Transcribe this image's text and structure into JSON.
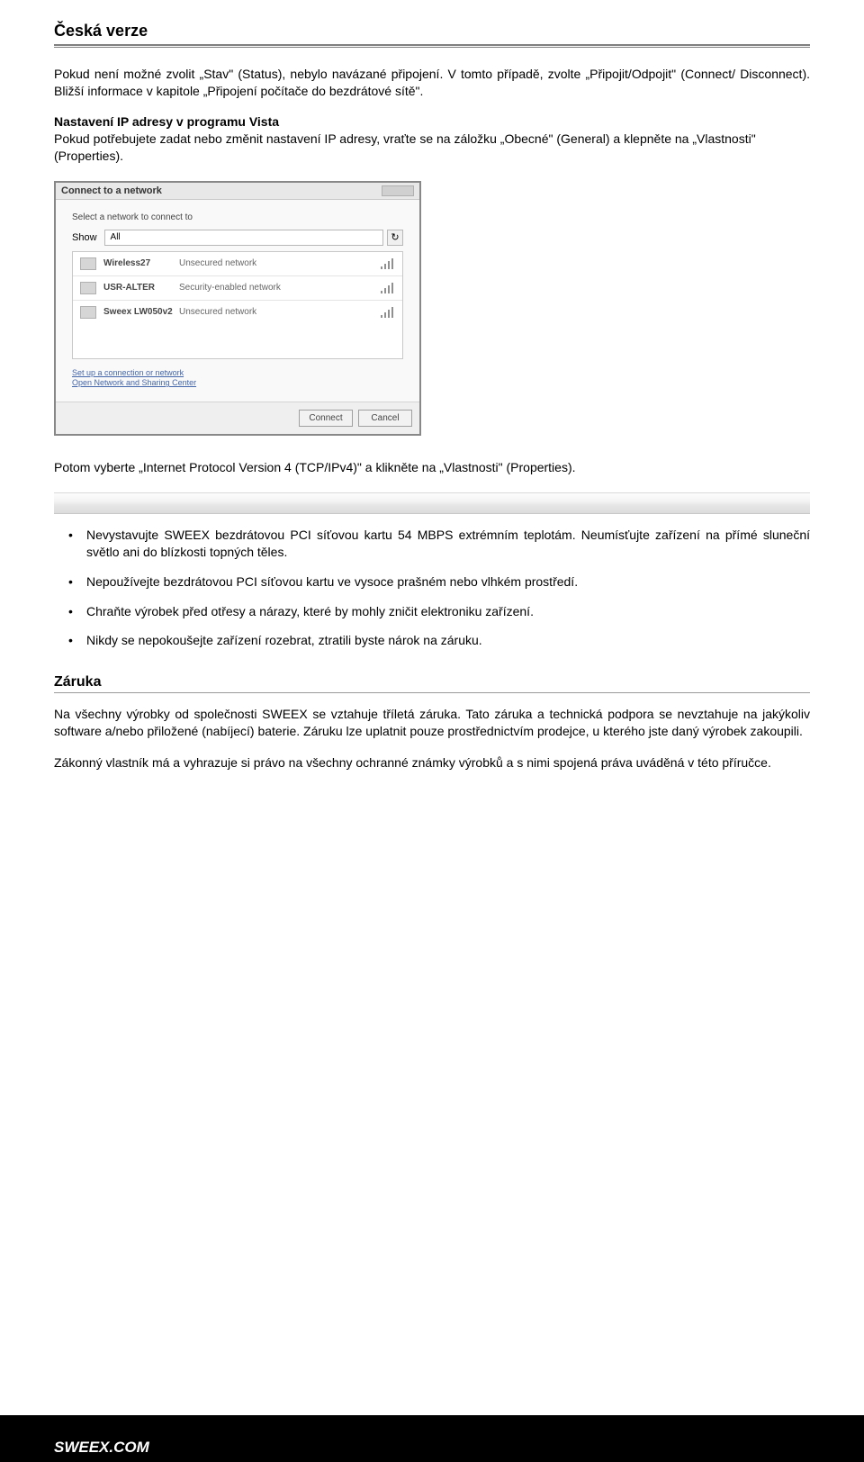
{
  "header": {
    "title": "Česká verze"
  },
  "intro": {
    "para1": "Pokud není možné zvolit „Stav\" (Status), nebylo navázané připojení. V tomto případě, zvolte „Připojit/Odpojit\" (Connect/ Disconnect). Bližší informace v kapitole „Připojení počítače do bezdrátové sítě\"."
  },
  "vista": {
    "title": "Nastavení IP adresy v programu Vista",
    "text": "Pokud potřebujete zadat nebo změnit nastavení IP adresy, vraťte se na záložku „Obecné\" (General) a klepněte na „Vlastnosti\" (Properties)."
  },
  "dialog": {
    "title": "Connect to a network",
    "select_label": "Select a network to connect to",
    "show_label": "Show",
    "show_value": "All",
    "networks": [
      {
        "name": "Wireless27",
        "security": "Unsecured network"
      },
      {
        "name": "USR-ALTER",
        "security": "Security-enabled network"
      },
      {
        "name": "Sweex LW050v2",
        "security": "Unsecured network"
      }
    ],
    "link1": "Set up a connection or network",
    "link2": "Open Network and Sharing Center",
    "connect_btn": "Connect",
    "cancel_btn": "Cancel"
  },
  "after_dialog": "Potom vyberte „Internet Protocol Version 4 (TCP/IPv4)\" a klikněte na „Vlastnosti\" (Properties).",
  "bullets": [
    "Nevystavujte SWEEX bezdrátovou PCI síťovou kartu 54 MBPS extrémním teplotám. Neumísťujte zařízení na přímé sluneční světlo ani do blízkosti topných těles.",
    "Nepoužívejte bezdrátovou PCI síťovou kartu ve vysoce prašném nebo vlhkém prostředí.",
    "Chraňte výrobek před otřesy a nárazy, které by mohly zničit elektroniku zařízení.",
    "Nikdy se nepokoušejte zařízení rozebrat, ztratili byste nárok na záruku."
  ],
  "warranty": {
    "heading": "Záruka",
    "para1": "Na všechny výrobky od společnosti SWEEX se vztahuje tříletá záruka. Tato záruka a technická podpora se nevztahuje na jakýkoliv software a/nebo přiložené (nabíjecí) baterie. Záruku lze uplatnit pouze prostřednictvím prodejce, u kterého jste daný výrobek zakoupili.",
    "para2": "Zákonný vlastník má a vyhrazuje si právo na všechny ochranné známky výrobků a s nimi spojená práva uváděná v této příručce."
  },
  "footer": "SWEEX.COM"
}
